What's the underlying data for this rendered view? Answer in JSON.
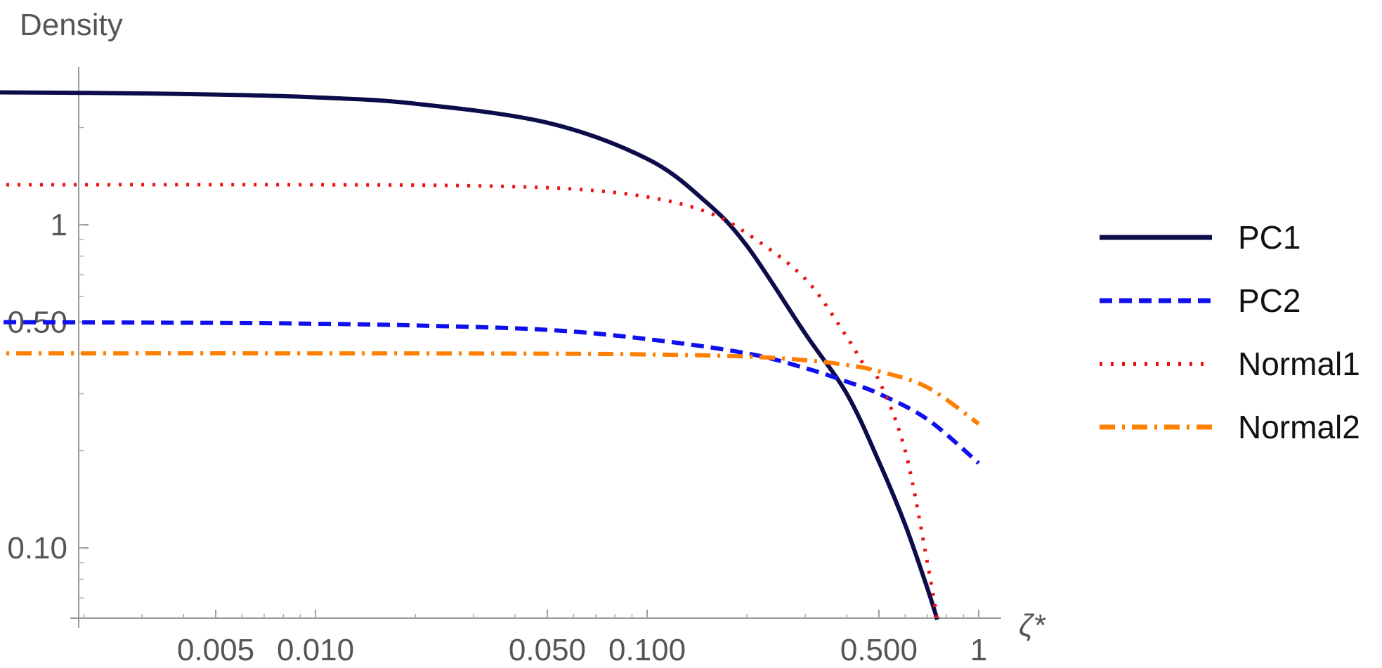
{
  "chart_data": {
    "type": "line",
    "ylabel": "Density",
    "xlabel": "ζ*",
    "x_scale": "log",
    "y_scale": "log",
    "xlim": [
      0.001,
      1.05
    ],
    "ylim": [
      0.06,
      3.0
    ],
    "x_ticks": [
      {
        "value": 0.005,
        "label": "0.005"
      },
      {
        "value": 0.01,
        "label": "0.010"
      },
      {
        "value": 0.05,
        "label": "0.050"
      },
      {
        "value": 0.1,
        "label": "0.100"
      },
      {
        "value": 0.5,
        "label": "0.500"
      },
      {
        "value": 1,
        "label": "1"
      }
    ],
    "y_ticks": [
      {
        "value": 0.1,
        "label": "0.10"
      },
      {
        "value": 0.5,
        "label": "0.50"
      },
      {
        "value": 1,
        "label": "1"
      }
    ],
    "legend_position": "right",
    "series": [
      {
        "name": "PC1",
        "color": "#0c0c4a",
        "style": "solid",
        "points": [
          [
            0.001,
            2.57
          ],
          [
            0.002,
            2.56
          ],
          [
            0.005,
            2.53
          ],
          [
            0.01,
            2.48
          ],
          [
            0.02,
            2.37
          ],
          [
            0.05,
            2.07
          ],
          [
            0.1,
            1.6
          ],
          [
            0.15,
            1.18
          ],
          [
            0.2,
            0.86
          ],
          [
            0.3,
            0.46
          ],
          [
            0.4,
            0.3
          ],
          [
            0.5,
            0.185
          ],
          [
            0.6,
            0.118
          ],
          [
            0.7,
            0.075
          ],
          [
            0.75,
            0.06
          ]
        ]
      },
      {
        "name": "PC2",
        "color": "#1010ee",
        "style": "dashed",
        "points": [
          [
            0.001,
            0.5
          ],
          [
            0.005,
            0.497
          ],
          [
            0.01,
            0.494
          ],
          [
            0.02,
            0.488
          ],
          [
            0.05,
            0.473
          ],
          [
            0.1,
            0.443
          ],
          [
            0.2,
            0.4
          ],
          [
            0.3,
            0.36
          ],
          [
            0.4,
            0.327
          ],
          [
            0.5,
            0.3
          ],
          [
            0.7,
            0.25
          ],
          [
            1.0,
            0.183
          ]
        ]
      },
      {
        "name": "Normal1",
        "color": "#ee1111",
        "style": "dotted",
        "points": [
          [
            0.001,
            1.33
          ],
          [
            0.01,
            1.33
          ],
          [
            0.03,
            1.32
          ],
          [
            0.06,
            1.29
          ],
          [
            0.1,
            1.22
          ],
          [
            0.15,
            1.1
          ],
          [
            0.2,
            0.94
          ],
          [
            0.3,
            0.68
          ],
          [
            0.4,
            0.45
          ],
          [
            0.45,
            0.37
          ],
          [
            0.5,
            0.33
          ],
          [
            0.6,
            0.2
          ],
          [
            0.7,
            0.09
          ],
          [
            0.75,
            0.06
          ]
        ]
      },
      {
        "name": "Normal2",
        "color": "#ff8000",
        "style": "dashdot",
        "points": [
          [
            0.001,
            0.4
          ],
          [
            0.01,
            0.4
          ],
          [
            0.05,
            0.399
          ],
          [
            0.1,
            0.397
          ],
          [
            0.2,
            0.391
          ],
          [
            0.3,
            0.381
          ],
          [
            0.4,
            0.368
          ],
          [
            0.5,
            0.352
          ],
          [
            0.7,
            0.314
          ],
          [
            1.0,
            0.242
          ]
        ]
      }
    ]
  }
}
